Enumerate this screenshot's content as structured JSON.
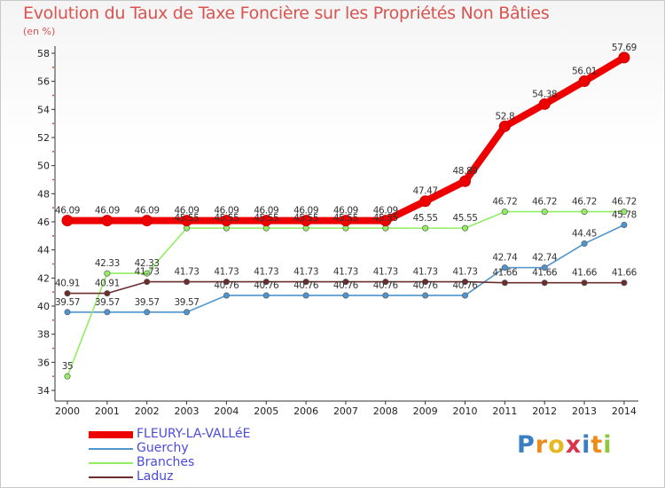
{
  "chart_data": {
    "type": "line",
    "title": "Evolution du Taux de Taxe Foncière sur les Propriétés Non Bâties",
    "ylabel": "(en %)",
    "xlabel": "",
    "categories": [
      "2000",
      "2001",
      "2002",
      "2003",
      "2004",
      "2005",
      "2006",
      "2007",
      "2008",
      "2009",
      "2010",
      "2011",
      "2012",
      "2013",
      "2014"
    ],
    "ylim": [
      34,
      58
    ],
    "yticks": [
      34,
      36,
      38,
      40,
      42,
      44,
      46,
      48,
      50,
      52,
      54,
      56,
      58
    ],
    "grid": false,
    "legend_position": "bottom-left",
    "series": [
      {
        "name": "FLEURY-LA-VALLéE",
        "color": "#ee0000",
        "values": [
          46.09,
          46.09,
          46.09,
          46.09,
          46.09,
          46.09,
          46.09,
          46.09,
          46.09,
          47.47,
          48.89,
          52.8,
          54.38,
          56.01,
          57.69
        ],
        "labels": [
          "46.09",
          "46.09",
          "46.09",
          "46.09",
          "46.09",
          "46.09",
          "46.09",
          "46.09",
          "46.09",
          "47.47",
          "48.89",
          "52.8",
          "54.38",
          "56.01",
          "57.69"
        ]
      },
      {
        "name": "Guerchy",
        "color": "#4f94cd",
        "values": [
          39.57,
          39.57,
          39.57,
          39.57,
          40.76,
          40.76,
          40.76,
          40.76,
          40.76,
          40.76,
          40.76,
          42.74,
          42.74,
          44.45,
          45.78
        ],
        "labels": [
          "39.57",
          "39.57",
          "39.57",
          "39.57",
          "40.76",
          "40.76",
          "40.76",
          "40.76",
          "40.76",
          "40.76",
          "40.76",
          "42.74",
          "42.74",
          "44.45",
          "45.78"
        ]
      },
      {
        "name": "Branches",
        "color": "#90ee60",
        "values": [
          35,
          42.33,
          42.33,
          45.55,
          45.55,
          45.55,
          45.55,
          45.55,
          45.55,
          45.55,
          45.55,
          46.72,
          46.72,
          46.72,
          46.72
        ],
        "labels": [
          "35",
          "42.33",
          "42.33",
          "45.55",
          "45.55",
          "45.55",
          "45.55",
          "45.55",
          "45.55",
          "45.55",
          "45.55",
          "46.72",
          "46.72",
          "46.72",
          "46.72"
        ]
      },
      {
        "name": "Laduz",
        "color": "#6b2d2d",
        "values": [
          40.91,
          40.91,
          41.73,
          41.73,
          41.73,
          41.73,
          41.73,
          41.73,
          41.73,
          41.73,
          41.73,
          41.66,
          41.66,
          41.66,
          41.66
        ],
        "labels": [
          "40.91",
          "40.91",
          "41.73",
          "41.73",
          "41.73",
          "41.73",
          "41.73",
          "41.73",
          "41.73",
          "41.73",
          "41.73",
          "41.66",
          "41.66",
          "41.66",
          "41.66"
        ]
      }
    ]
  },
  "brand": {
    "letters": [
      "P",
      "r",
      "o",
      "x",
      "i",
      "t",
      "i"
    ],
    "colors": [
      "#3a7fc1",
      "#f08a1a",
      "#e8b820",
      "#d8344a",
      "#3a7fc1",
      "#f08a1a",
      "#8dc63f"
    ]
  }
}
